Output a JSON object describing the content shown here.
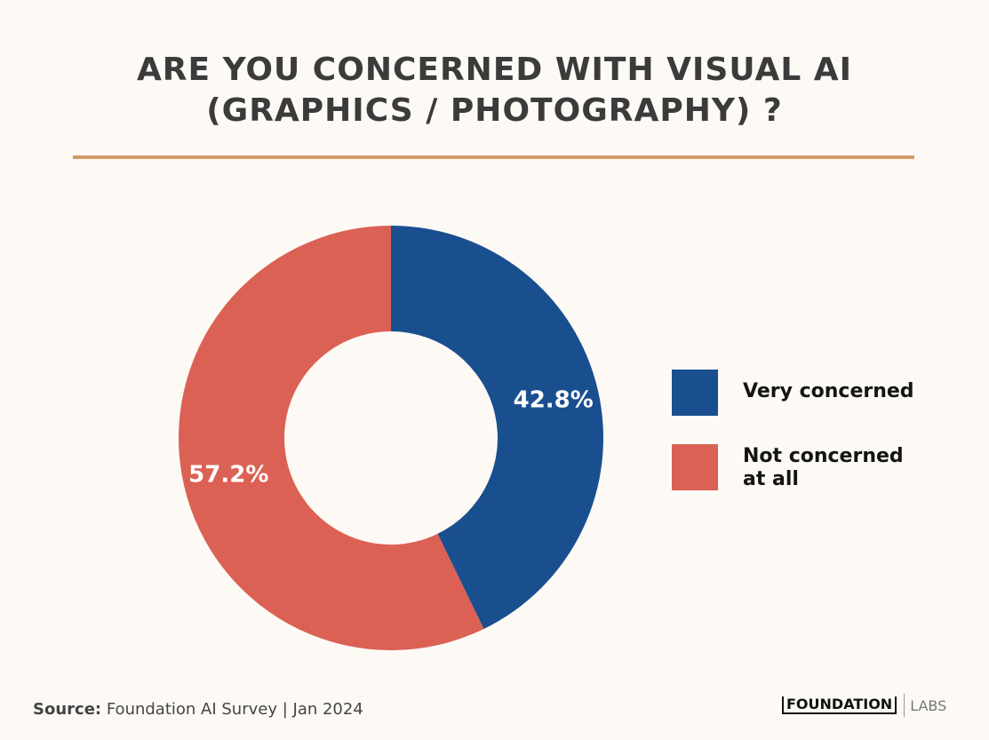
{
  "header": {
    "title_line1": "ARE YOU CONCERNED WITH VISUAL AI",
    "title_line2": "(GRAPHICS / PHOTOGRAPHY) ?"
  },
  "chart_data": {
    "type": "pie",
    "donut": true,
    "title": "ARE YOU CONCERNED WITH VISUAL AI (GRAPHICS / PHOTOGRAPHY) ?",
    "categories": [
      "Very concerned",
      "Not concerned at all"
    ],
    "values": [
      42.8,
      57.2
    ],
    "labels": [
      "42.8%",
      "57.2%"
    ],
    "colors": [
      "#1a4f8f",
      "#db6154"
    ],
    "legend_placement": "right"
  },
  "legend": {
    "items": [
      {
        "line1": "Very concerned",
        "line2": ""
      },
      {
        "line1": "Not concerned",
        "line2": "at all"
      }
    ]
  },
  "footer": {
    "source_label": "Source:",
    "source_text": "Foundation AI Survey | Jan 2024",
    "brand_name": "FOUNDATION",
    "brand_suffix": "LABS"
  }
}
